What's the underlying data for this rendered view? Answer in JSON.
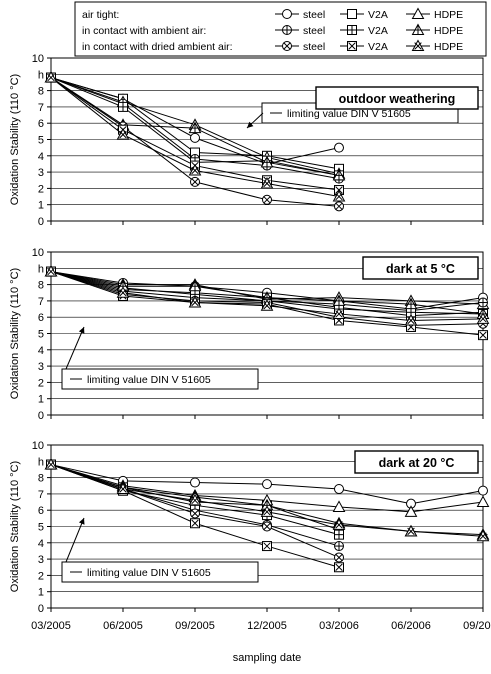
{
  "chart_data": {
    "type": "line",
    "ylabel": "Oxidation Stability (110 °C)",
    "xlabel": "sampling date",
    "x_tick_labels": [
      "03/2005",
      "06/2005",
      "09/2005",
      "12/2005",
      "03/2006",
      "06/2006",
      "09/2006"
    ],
    "y_tick_labels": [
      "0",
      "1",
      "2",
      "3",
      "4",
      "5",
      "6",
      "7",
      "8",
      "9",
      "10"
    ],
    "y_tick_label_h": "h",
    "ylim": [
      0,
      10
    ],
    "grid": true,
    "legend": {
      "placement": "top",
      "row_labels": [
        "air tight:",
        "in contact with ambient air:",
        "in contact with dried ambient air:"
      ],
      "container_labels": [
        "steel",
        "V2A",
        "HDPE"
      ]
    },
    "series_styles": [
      {
        "storage": "air tight",
        "container": "steel",
        "marker": "circle"
      },
      {
        "storage": "air tight",
        "container": "V2A",
        "marker": "square"
      },
      {
        "storage": "air tight",
        "container": "HDPE",
        "marker": "triangle"
      },
      {
        "storage": "in contact with ambient air",
        "container": "steel",
        "marker": "circle-cross"
      },
      {
        "storage": "in contact with ambient air",
        "container": "V2A",
        "marker": "square-cross"
      },
      {
        "storage": "in contact with ambient air",
        "container": "HDPE",
        "marker": "triangle-cross"
      },
      {
        "storage": "in contact with dried ambient air",
        "container": "steel",
        "marker": "circle-x"
      },
      {
        "storage": "in contact with dried ambient air",
        "container": "V2A",
        "marker": "square-x"
      },
      {
        "storage": "in contact with dried ambient air",
        "container": "HDPE",
        "marker": "triangle-x"
      }
    ],
    "panels": [
      {
        "title": "outdoor weathering",
        "limit_label": "limiting value DIN V 51605",
        "series": [
          {
            "values": [
              8.8,
              7.5,
              5.1,
              3.5,
              4.5
            ]
          },
          {
            "values": [
              8.8,
              7.5,
              4.2,
              4.0,
              3.2
            ]
          },
          {
            "values": [
              8.8,
              7.3,
              5.9,
              3.9,
              2.9
            ]
          },
          {
            "values": [
              8.8,
              7.2,
              3.8,
              3.4,
              2.6
            ]
          },
          {
            "values": [
              8.8,
              7.0,
              3.6,
              3.7,
              2.8
            ]
          },
          {
            "values": [
              8.8,
              5.9,
              5.7,
              3.6,
              2.8
            ]
          },
          {
            "values": [
              8.8,
              5.8,
              2.4,
              1.3,
              0.9
            ]
          },
          {
            "values": [
              8.8,
              5.6,
              3.4,
              2.5,
              1.9
            ]
          },
          {
            "values": [
              8.8,
              5.3,
              3.1,
              2.3,
              1.5
            ]
          }
        ]
      },
      {
        "title": "dark at  5 °C",
        "limit_label": "limiting value DIN V 51605",
        "series": [
          {
            "values": [
              8.8,
              8.1,
              7.9,
              7.5,
              7.0,
              6.5,
              7.2
            ]
          },
          {
            "values": [
              8.8,
              7.7,
              7.5,
              7.2,
              6.6,
              6.1,
              6.3
            ]
          },
          {
            "values": [
              8.8,
              8.0,
              8.0,
              7.1,
              7.2,
              7.0,
              6.8
            ]
          },
          {
            "values": [
              8.8,
              7.6,
              7.2,
              7.0,
              6.8,
              6.4,
              6.9
            ]
          },
          {
            "values": [
              8.8,
              7.8,
              7.4,
              7.0,
              6.5,
              6.3,
              6.2
            ]
          },
          {
            "values": [
              8.8,
              7.9,
              7.9,
              7.2,
              7.0,
              6.8,
              6.2
            ]
          },
          {
            "values": [
              8.8,
              7.4,
              7.0,
              6.9,
              6.0,
              5.5,
              5.6
            ]
          },
          {
            "values": [
              8.8,
              7.3,
              6.9,
              6.8,
              5.8,
              5.4,
              4.9
            ]
          },
          {
            "values": [
              8.8,
              7.5,
              6.9,
              6.7,
              6.2,
              5.8,
              5.9
            ]
          }
        ]
      },
      {
        "title": "dark at  20 °C",
        "limit_label": "limiting value DIN V 51605",
        "series": [
          {
            "values": [
              8.8,
              7.8,
              7.7,
              7.6,
              7.3,
              6.4,
              7.2
            ]
          },
          {
            "values": [
              8.8,
              7.4,
              6.5,
              6.3,
              4.8
            ]
          },
          {
            "values": [
              8.8,
              7.5,
              6.9,
              6.6,
              6.2,
              5.9,
              6.5
            ]
          },
          {
            "values": [
              8.8,
              7.3,
              6.0,
              5.1,
              3.8
            ]
          },
          {
            "values": [
              8.8,
              7.2,
              6.3,
              5.7,
              4.5
            ]
          },
          {
            "values": [
              8.8,
              7.4,
              6.8,
              6.3,
              5.2,
              4.7,
              4.5
            ]
          },
          {
            "values": [
              8.8,
              7.3,
              5.8,
              5.0,
              3.1
            ]
          },
          {
            "values": [
              8.8,
              7.2,
              5.2,
              3.8,
              2.5
            ]
          },
          {
            "values": [
              8.8,
              7.3,
              6.6,
              5.9,
              5.1,
              4.7,
              4.4
            ]
          }
        ]
      }
    ]
  }
}
